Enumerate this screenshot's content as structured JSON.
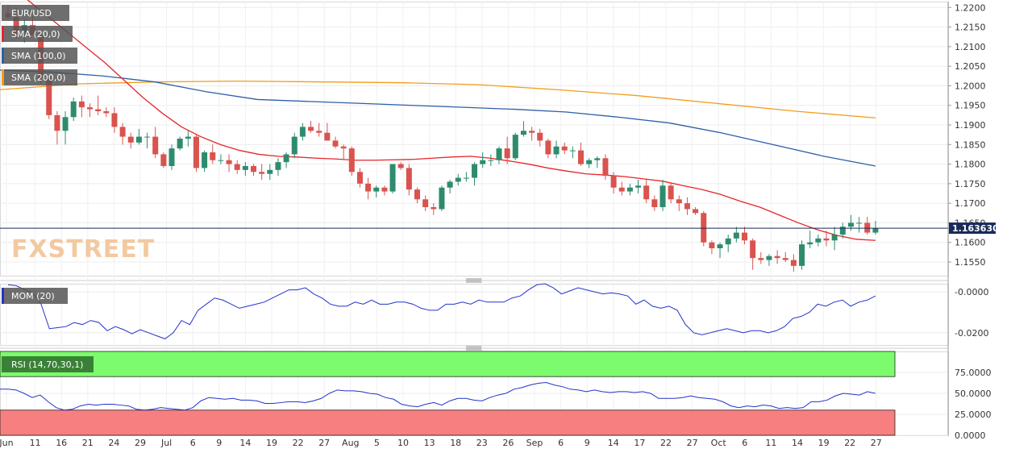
{
  "chart_data": {
    "type": "candlestick",
    "symbol": "EUR/USD",
    "last_price": "1.163630",
    "watermark": "FXSTREET",
    "colors": {
      "up": "#2e8b6e",
      "down": "#d9534f",
      "sma20": "#e6252a",
      "sma100": "#2d5fa8",
      "sma200": "#f39c1c",
      "price_line": "#1a2a5a",
      "mom": "#2233cc",
      "rsi": "#2233cc",
      "rsi_overbought": "#7cfc6c",
      "rsi_oversold": "#f87f7f",
      "label_bg": "#555555",
      "price_badge_bg": "#1a2a5a"
    },
    "price_ticks": [
      "1.2200",
      "1.2150",
      "1.2100",
      "1.2050",
      "1.2000",
      "1.1950",
      "1.1900",
      "1.1850",
      "1.1800",
      "1.1750",
      "1.1700",
      "1.1650",
      "1.1600",
      "1.1550"
    ],
    "price_ylim": [
      1.1515,
      1.2215
    ],
    "date_ticks": [
      "Jun",
      "11",
      "16",
      "21",
      "24",
      "29",
      "Jul",
      "6",
      "9",
      "14",
      "19",
      "22",
      "27",
      "Aug",
      "5",
      "10",
      "13",
      "18",
      "23",
      "26",
      "Sep",
      "6",
      "9",
      "14",
      "17",
      "22",
      "27",
      "Oct",
      "6",
      "11",
      "14",
      "19",
      "22",
      "27"
    ],
    "candles": [
      [
        1.2185,
        1.2205,
        1.217,
        1.2175
      ],
      [
        1.2175,
        1.22,
        1.212,
        1.213
      ],
      [
        1.213,
        1.217,
        1.211,
        1.2155
      ],
      [
        1.2155,
        1.218,
        1.213,
        1.213
      ],
      [
        1.213,
        1.214,
        1.2005,
        1.202
      ],
      [
        1.202,
        1.2025,
        1.1915,
        1.1925
      ],
      [
        1.1925,
        1.1935,
        1.185,
        1.1885
      ],
      [
        1.1885,
        1.1935,
        1.185,
        1.192
      ],
      [
        1.192,
        1.197,
        1.191,
        1.196
      ],
      [
        1.196,
        1.1975,
        1.192,
        1.1945
      ],
      [
        1.1945,
        1.1955,
        1.192,
        1.194
      ],
      [
        1.194,
        1.1975,
        1.1925,
        1.1935
      ],
      [
        1.1935,
        1.1945,
        1.192,
        1.193
      ],
      [
        1.193,
        1.1945,
        1.188,
        1.1895
      ],
      [
        1.1895,
        1.1905,
        1.185,
        1.187
      ],
      [
        1.187,
        1.188,
        1.184,
        1.1855
      ],
      [
        1.1855,
        1.189,
        1.185,
        1.187
      ],
      [
        1.187,
        1.188,
        1.184,
        1.187
      ],
      [
        1.187,
        1.1895,
        1.1815,
        1.1825
      ],
      [
        1.1825,
        1.183,
        1.179,
        1.1795
      ],
      [
        1.1795,
        1.185,
        1.1785,
        1.184
      ],
      [
        1.184,
        1.187,
        1.1835,
        1.1865
      ],
      [
        1.1865,
        1.1885,
        1.1845,
        1.187
      ],
      [
        1.187,
        1.1875,
        1.178,
        1.179
      ],
      [
        1.179,
        1.1835,
        1.178,
        1.183
      ],
      [
        1.183,
        1.185,
        1.18,
        1.181
      ],
      [
        1.181,
        1.1825,
        1.18,
        1.181
      ],
      [
        1.181,
        1.1825,
        1.178,
        1.18
      ],
      [
        1.18,
        1.181,
        1.1775,
        1.1785
      ],
      [
        1.1785,
        1.1805,
        1.177,
        1.1795
      ],
      [
        1.1795,
        1.18,
        1.177,
        1.178
      ],
      [
        1.178,
        1.18,
        1.176,
        1.1775
      ],
      [
        1.1775,
        1.18,
        1.176,
        1.1785
      ],
      [
        1.1785,
        1.1815,
        1.177,
        1.1805
      ],
      [
        1.1805,
        1.183,
        1.179,
        1.1825
      ],
      [
        1.1825,
        1.188,
        1.1815,
        1.187
      ],
      [
        1.187,
        1.1905,
        1.186,
        1.1895
      ],
      [
        1.1895,
        1.191,
        1.188,
        1.1885
      ],
      [
        1.1885,
        1.1905,
        1.187,
        1.188
      ],
      [
        1.188,
        1.1905,
        1.186,
        1.186
      ],
      [
        1.186,
        1.187,
        1.184,
        1.1845
      ],
      [
        1.1845,
        1.185,
        1.181,
        1.184
      ],
      [
        1.184,
        1.1845,
        1.177,
        1.178
      ],
      [
        1.178,
        1.179,
        1.174,
        1.175
      ],
      [
        1.175,
        1.1765,
        1.171,
        1.173
      ],
      [
        1.173,
        1.1745,
        1.1715,
        1.174
      ],
      [
        1.174,
        1.1745,
        1.172,
        1.173
      ],
      [
        1.173,
        1.18,
        1.1725,
        1.18
      ],
      [
        1.18,
        1.1805,
        1.1785,
        1.179
      ],
      [
        1.179,
        1.18,
        1.172,
        1.1735
      ],
      [
        1.1735,
        1.174,
        1.17,
        1.171
      ],
      [
        1.171,
        1.172,
        1.168,
        1.169
      ],
      [
        1.169,
        1.17,
        1.167,
        1.1685
      ],
      [
        1.1685,
        1.1745,
        1.168,
        1.174
      ],
      [
        1.174,
        1.176,
        1.1725,
        1.1755
      ],
      [
        1.1755,
        1.1775,
        1.1745,
        1.1765
      ],
      [
        1.1765,
        1.178,
        1.1755,
        1.1765
      ],
      [
        1.1765,
        1.1805,
        1.1745,
        1.18
      ],
      [
        1.18,
        1.183,
        1.179,
        1.181
      ],
      [
        1.181,
        1.1825,
        1.1795,
        1.181
      ],
      [
        1.181,
        1.1845,
        1.18,
        1.184
      ],
      [
        1.184,
        1.187,
        1.18,
        1.1815
      ],
      [
        1.1815,
        1.188,
        1.181,
        1.1875
      ],
      [
        1.1875,
        1.191,
        1.187,
        1.1885
      ],
      [
        1.1885,
        1.1895,
        1.186,
        1.188
      ],
      [
        1.188,
        1.189,
        1.1845,
        1.186
      ],
      [
        1.186,
        1.1865,
        1.1815,
        1.1825
      ],
      [
        1.1825,
        1.186,
        1.1815,
        1.1845
      ],
      [
        1.1845,
        1.1855,
        1.1825,
        1.1835
      ],
      [
        1.1835,
        1.1845,
        1.1815,
        1.1835
      ],
      [
        1.1835,
        1.1855,
        1.1795,
        1.18
      ],
      [
        1.18,
        1.1815,
        1.179,
        1.181
      ],
      [
        1.181,
        1.182,
        1.179,
        1.1815
      ],
      [
        1.1815,
        1.1825,
        1.176,
        1.177
      ],
      [
        1.177,
        1.178,
        1.1725,
        1.174
      ],
      [
        1.174,
        1.1755,
        1.172,
        1.173
      ],
      [
        1.173,
        1.175,
        1.172,
        1.174
      ],
      [
        1.174,
        1.176,
        1.1725,
        1.1745
      ],
      [
        1.1745,
        1.176,
        1.17,
        1.171
      ],
      [
        1.171,
        1.172,
        1.168,
        1.169
      ],
      [
        1.169,
        1.176,
        1.168,
        1.1745
      ],
      [
        1.1745,
        1.175,
        1.17,
        1.171
      ],
      [
        1.171,
        1.172,
        1.168,
        1.17
      ],
      [
        1.17,
        1.1715,
        1.167,
        1.1685
      ],
      [
        1.1685,
        1.169,
        1.167,
        1.1675
      ],
      [
        1.1675,
        1.168,
        1.159,
        1.16
      ],
      [
        1.16,
        1.1605,
        1.157,
        1.1585
      ],
      [
        1.1585,
        1.16,
        1.156,
        1.1595
      ],
      [
        1.1595,
        1.162,
        1.1575,
        1.161
      ],
      [
        1.161,
        1.164,
        1.16,
        1.1625
      ],
      [
        1.1625,
        1.164,
        1.1595,
        1.1605
      ],
      [
        1.1605,
        1.161,
        1.153,
        1.156
      ],
      [
        1.156,
        1.1575,
        1.1545,
        1.1555
      ],
      [
        1.1555,
        1.157,
        1.154,
        1.1565
      ],
      [
        1.1565,
        1.158,
        1.1545,
        1.156
      ],
      [
        1.156,
        1.1575,
        1.155,
        1.1555
      ],
      [
        1.1555,
        1.157,
        1.1525,
        1.154
      ],
      [
        1.154,
        1.1605,
        1.153,
        1.1595
      ],
      [
        1.1595,
        1.163,
        1.1585,
        1.16
      ],
      [
        1.16,
        1.162,
        1.159,
        1.161
      ],
      [
        1.161,
        1.163,
        1.159,
        1.1605
      ],
      [
        1.1605,
        1.164,
        1.158,
        1.162
      ],
      [
        1.162,
        1.165,
        1.161,
        1.164
      ],
      [
        1.164,
        1.167,
        1.163,
        1.165
      ],
      [
        1.165,
        1.1665,
        1.1625,
        1.165
      ],
      [
        1.165,
        1.1665,
        1.162,
        1.1625
      ],
      [
        1.1625,
        1.1655,
        1.162,
        1.1636
      ]
    ],
    "sma20_label": "SMA (20,0)",
    "sma100_label": "SMA (100,0)",
    "sma200_label": "SMA (200,0)",
    "sma20": [
      1.225,
      1.222,
      1.218,
      1.214,
      1.21,
      1.206,
      1.2015,
      1.197,
      1.193,
      1.1895,
      1.187,
      1.185,
      1.1835,
      1.1825,
      1.182,
      1.1818,
      1.1815,
      1.1813,
      1.181,
      1.181,
      1.1811,
      1.1812,
      1.1815,
      1.1818,
      1.182,
      1.1815,
      1.1808,
      1.18,
      1.179,
      1.1782,
      1.1775,
      1.1772,
      1.1768,
      1.1762,
      1.1756,
      1.1745,
      1.1735,
      1.1722,
      1.1705,
      1.169,
      1.167,
      1.165,
      1.1632,
      1.1618,
      1.1608,
      1.1605
    ],
    "sma20_x": [
      0,
      2,
      4,
      6,
      8,
      10,
      12,
      14,
      16,
      18,
      20,
      22,
      24,
      26,
      28,
      30,
      32,
      34,
      36,
      38,
      40,
      42,
      44,
      46,
      48,
      50,
      52,
      54,
      56,
      58,
      60,
      62,
      64,
      66,
      68,
      70,
      72,
      74,
      76,
      78,
      80,
      82,
      84,
      86,
      88,
      90
    ],
    "sma100": [
      1.204,
      1.2035,
      1.2025,
      1.201,
      1.1985,
      1.1965,
      1.196,
      1.1955,
      1.195,
      1.1945,
      1.194,
      1.1933,
      1.192,
      1.1905,
      1.188,
      1.185,
      1.182,
      1.1795
    ],
    "sma200": [
      1.199,
      1.2005,
      1.201,
      1.2012,
      1.201,
      1.2008,
      1.2003,
      1.199,
      1.1975,
      1.1955,
      1.1935,
      1.1918
    ],
    "mom_label": "MOM (20)",
    "mom_ticks": [
      "-0.0000",
      "-0.0200"
    ],
    "mom_ylim": [
      -0.026,
      0.004
    ],
    "mom": [
      0.0035,
      0.003,
      0.001,
      -0.0005,
      -0.006,
      -0.018,
      -0.0175,
      -0.017,
      -0.015,
      -0.016,
      -0.014,
      -0.015,
      -0.019,
      -0.017,
      -0.0185,
      -0.0205,
      -0.0185,
      -0.02,
      -0.0215,
      -0.023,
      -0.02,
      -0.014,
      -0.016,
      -0.009,
      -0.006,
      -0.003,
      -0.004,
      -0.006,
      -0.008,
      -0.007,
      -0.006,
      -0.005,
      -0.003,
      -0.001,
      0.001,
      0.001,
      0.002,
      -0.001,
      -0.003,
      -0.006,
      -0.007,
      -0.007,
      -0.005,
      -0.006,
      -0.004,
      -0.006,
      -0.006,
      -0.005,
      -0.005,
      -0.006,
      -0.008,
      -0.009,
      -0.009,
      -0.006,
      -0.006,
      -0.005,
      -0.006,
      -0.004,
      -0.005,
      -0.005,
      -0.005,
      -0.003,
      -0.002,
      0.001,
      0.0035,
      0.004,
      0.002,
      -0.001,
      0.0005,
      0.002,
      0.001,
      0.0,
      -0.001,
      -0.0005,
      -0.001,
      -0.002,
      -0.006,
      -0.004,
      -0.007,
      -0.008,
      -0.007,
      -0.009,
      -0.016,
      -0.02,
      -0.021,
      -0.02,
      -0.019,
      -0.018,
      -0.019,
      -0.02,
      -0.019,
      -0.019,
      -0.02,
      -0.019,
      -0.017,
      -0.013,
      -0.012,
      -0.01,
      -0.006,
      -0.007,
      -0.005,
      -0.004,
      -0.007,
      -0.005,
      -0.004,
      -0.002
    ],
    "rsi_label": "RSI (14,70,30,1)",
    "rsi_ticks": [
      "75.0000",
      "50.0000",
      "25.0000",
      "0.0000"
    ],
    "rsi_ylim": [
      0,
      100
    ],
    "rsi_levels": [
      70,
      30
    ],
    "rsi": [
      55,
      55,
      54,
      50,
      45,
      48,
      40,
      33,
      30,
      31,
      35,
      37,
      36,
      37,
      37,
      36,
      35,
      31,
      30,
      31,
      33,
      32,
      31,
      30,
      33,
      41,
      45,
      44,
      43,
      44,
      42,
      42,
      41,
      38,
      38,
      39,
      40,
      40,
      39,
      41,
      44,
      50,
      54,
      53,
      53,
      52,
      50,
      49,
      45,
      43,
      37,
      35,
      34,
      37,
      39,
      36,
      41,
      44,
      44,
      42,
      41,
      45,
      48,
      50,
      55,
      57,
      60,
      62,
      63,
      60,
      58,
      55,
      54,
      52,
      54,
      52,
      51,
      52,
      52,
      51,
      52,
      50,
      44,
      44,
      44,
      45,
      47,
      45,
      44,
      43,
      40,
      35,
      33,
      35,
      34,
      36,
      35,
      32,
      33,
      32,
      33,
      40,
      40,
      42,
      47,
      50,
      49,
      48,
      52,
      50
    ]
  }
}
